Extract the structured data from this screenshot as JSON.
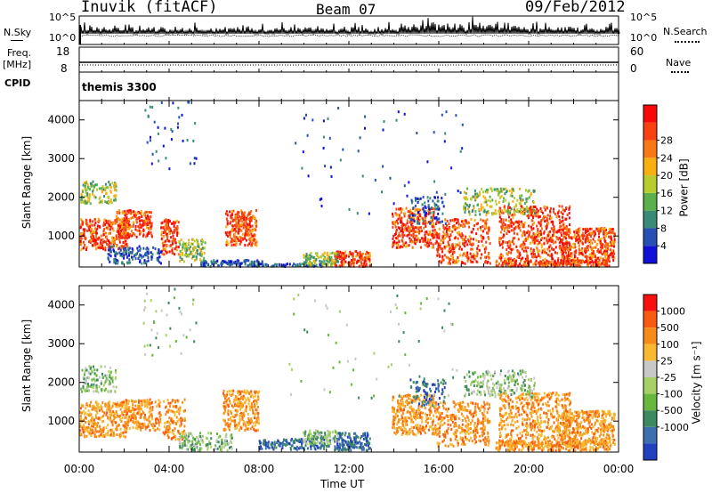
{
  "header": {
    "station": "Inuvik (fitACF)",
    "beam": "Beam 07",
    "date": "09/Feb/2012"
  },
  "top_panels": {
    "nsky_label": "N.Sky",
    "nsky_ticks": [
      "10^5",
      "10^0"
    ],
    "nsearch_label": "N.Search",
    "nsearch_ticks": [
      "10^5",
      "10^0"
    ],
    "freq_label": "Freq.",
    "freq_unit": "[MHz]",
    "freq_ticks": [
      "18",
      "8"
    ],
    "nave_label": "Nave",
    "nave_ticks": [
      "60",
      "0"
    ],
    "cpid_label": "CPID",
    "cpid_value": "themis 3300"
  },
  "chart_data": [
    {
      "type": "heatmap",
      "ylabel": "Slant Range [km]",
      "xlabel": "",
      "y_ticks": [
        "1000",
        "2000",
        "3000",
        "4000"
      ],
      "ylim": [
        200,
        4500
      ],
      "xlim": [
        0,
        24
      ],
      "colorbar": {
        "label": "Power [dB]",
        "ticks": [
          "4",
          "8",
          "12",
          "16",
          "20",
          "24",
          "28"
        ],
        "colors": [
          "#1010d8",
          "#2850b4",
          "#3a8a78",
          "#5ab04a",
          "#b8cc30",
          "#f8b010",
          "#f87818",
          "#f84010",
          "#f80808"
        ]
      }
    },
    {
      "type": "heatmap",
      "ylabel": "Slant Range [km]",
      "xlabel": "Time UT",
      "y_ticks": [
        "1000",
        "2000",
        "3000",
        "4000"
      ],
      "x_ticks": [
        "00:00",
        "04:00",
        "08:00",
        "12:00",
        "16:00",
        "20:00",
        "00:00"
      ],
      "ylim": [
        200,
        4500
      ],
      "xlim": [
        0,
        24
      ],
      "colorbar": {
        "label": "Velocity [m s⁻¹]",
        "ticks": [
          "1000",
          "500",
          "100",
          "25",
          "-25",
          "-100",
          "-500",
          "-1000"
        ],
        "colors": [
          "#2040c0",
          "#3c6fb0",
          "#3e8a60",
          "#68b840",
          "#a8d068",
          "#c8c8c8",
          "#f8b830",
          "#f88a18",
          "#f85a10",
          "#f81010"
        ]
      }
    }
  ],
  "colors": {
    "power_high": "#f81010",
    "power_low": "#1818d8",
    "velocity_neg": "#f88a18",
    "velocity_pos": "#3a7a88"
  }
}
